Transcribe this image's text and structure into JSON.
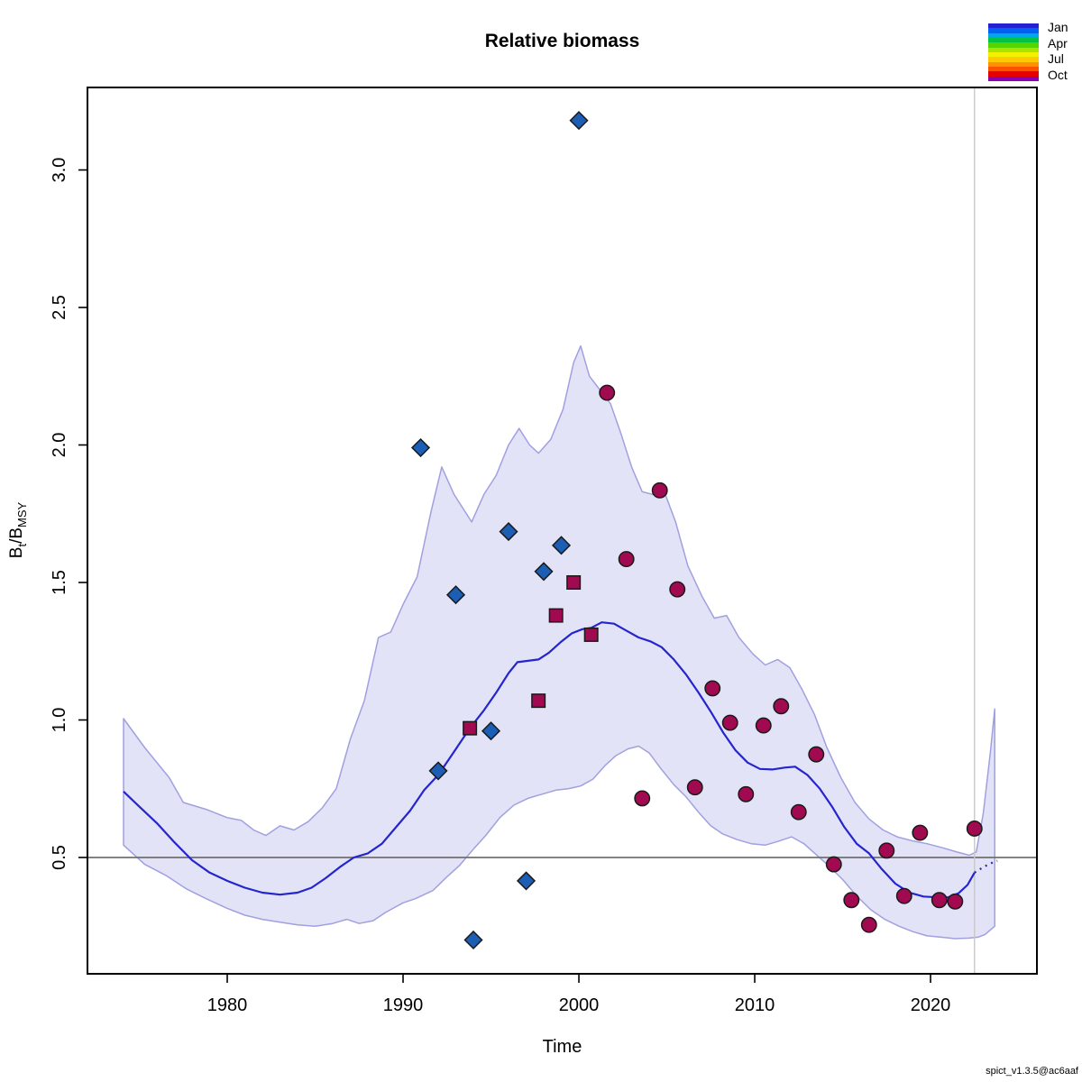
{
  "title": "Relative biomass",
  "xlabel": "Time",
  "ylabel_parts": {
    "base1": "B",
    "sub1": "t",
    "separator": "/",
    "base2": "B",
    "sub2": "MSY"
  },
  "footnote": "spict_v1.3.5@ac6aaf",
  "legend": {
    "labels": [
      "Jan",
      "Apr",
      "Jul",
      "Oct"
    ],
    "colorbar_colors": [
      "#2222D2",
      "#0060F0",
      "#00A8E8",
      "#00C244",
      "#55D400",
      "#AAE400",
      "#F2F200",
      "#FFC800",
      "#FF9100",
      "#FF5000",
      "#E60000",
      "#8A00B0"
    ]
  },
  "colors": {
    "band_fill": "#E3E3F7",
    "band_edge": "#A0A0E0",
    "median_line": "#2525CD",
    "diamond_fill": "#1B5EB3",
    "square_fill": "#A10A50",
    "circle_fill": "#A10A50",
    "point_stroke": "#1A1A1A",
    "ref_line": "#707070",
    "now_line": "#C8C8C8",
    "axis": "#000000"
  },
  "chart_data": {
    "type": "line",
    "title": "Relative biomass",
    "xlabel": "Time",
    "ylabel": "Bt/Bmsy",
    "x_ticks": [
      1980,
      1990,
      2000,
      2010,
      2020
    ],
    "y_ticks": [
      0.5,
      1.0,
      1.5,
      2.0,
      2.5,
      3.0
    ],
    "xlim": [
      1972.05,
      2026.05
    ],
    "ylim": [
      0.077,
      3.3
    ],
    "grid": false,
    "legend_position": "top-right",
    "reference_line_y": 0.5,
    "current_time_line_x": 2022.5,
    "band_upper": [
      [
        1974.1,
        1.005
      ],
      [
        1975.3,
        0.9
      ],
      [
        1976.7,
        0.79
      ],
      [
        1977.5,
        0.7
      ],
      [
        1978.8,
        0.675
      ],
      [
        1980,
        0.645
      ],
      [
        1980.8,
        0.635
      ],
      [
        1981.5,
        0.6
      ],
      [
        1982.2,
        0.58
      ],
      [
        1983,
        0.615
      ],
      [
        1983.8,
        0.6
      ],
      [
        1984.6,
        0.63
      ],
      [
        1985.4,
        0.68
      ],
      [
        1986.2,
        0.75
      ],
      [
        1987,
        0.93
      ],
      [
        1987.8,
        1.07
      ],
      [
        1988.6,
        1.3
      ],
      [
        1989.3,
        1.32
      ],
      [
        1990,
        1.42
      ],
      [
        1990.8,
        1.52
      ],
      [
        1991.6,
        1.76
      ],
      [
        1992.2,
        1.92
      ],
      [
        1992.9,
        1.82
      ],
      [
        1993.9,
        1.72
      ],
      [
        1994.6,
        1.82
      ],
      [
        1995.3,
        1.89
      ],
      [
        1996,
        2.0
      ],
      [
        1996.6,
        2.06
      ],
      [
        1997.2,
        2.0
      ],
      [
        1997.7,
        1.97
      ],
      [
        1998.4,
        2.02
      ],
      [
        1999.1,
        2.13
      ],
      [
        1999.7,
        2.3
      ],
      [
        2000.1,
        2.36
      ],
      [
        2000.6,
        2.25
      ],
      [
        2001.2,
        2.2
      ],
      [
        2001.8,
        2.15
      ],
      [
        2002.4,
        2.04
      ],
      [
        2003,
        1.92
      ],
      [
        2003.6,
        1.83
      ],
      [
        2004.2,
        1.82
      ],
      [
        2004.8,
        1.84
      ],
      [
        2005.5,
        1.72
      ],
      [
        2006.2,
        1.56
      ],
      [
        2007,
        1.45
      ],
      [
        2007.7,
        1.37
      ],
      [
        2008.4,
        1.38
      ],
      [
        2009.1,
        1.3
      ],
      [
        2009.9,
        1.24
      ],
      [
        2010.6,
        1.2
      ],
      [
        2011.3,
        1.22
      ],
      [
        2012,
        1.19
      ],
      [
        2012.7,
        1.11
      ],
      [
        2013.4,
        1.02
      ],
      [
        2014.1,
        0.9
      ],
      [
        2014.9,
        0.79
      ],
      [
        2015.7,
        0.7
      ],
      [
        2016.5,
        0.64
      ],
      [
        2017.3,
        0.6
      ],
      [
        2018.1,
        0.575
      ],
      [
        2019,
        0.56
      ],
      [
        2019.8,
        0.55
      ],
      [
        2020.7,
        0.535
      ],
      [
        2021.5,
        0.52
      ],
      [
        2022.2,
        0.508
      ],
      [
        2022.6,
        0.52
      ],
      [
        2023,
        0.66
      ],
      [
        2023.4,
        0.88
      ],
      [
        2023.65,
        1.04
      ]
    ],
    "band_lower": [
      [
        1974.1,
        0.545
      ],
      [
        1975.3,
        0.475
      ],
      [
        1976.5,
        0.435
      ],
      [
        1977.7,
        0.385
      ],
      [
        1978.8,
        0.35
      ],
      [
        1980,
        0.315
      ],
      [
        1981,
        0.29
      ],
      [
        1982,
        0.275
      ],
      [
        1983,
        0.265
      ],
      [
        1984,
        0.255
      ],
      [
        1985,
        0.25
      ],
      [
        1986,
        0.26
      ],
      [
        1986.8,
        0.275
      ],
      [
        1987.5,
        0.26
      ],
      [
        1988.3,
        0.27
      ],
      [
        1989,
        0.3
      ],
      [
        1990,
        0.335
      ],
      [
        1990.7,
        0.35
      ],
      [
        1991.7,
        0.38
      ],
      [
        1992.5,
        0.43
      ],
      [
        1993.2,
        0.47
      ],
      [
        1994,
        0.53
      ],
      [
        1994.7,
        0.58
      ],
      [
        1995.5,
        0.645
      ],
      [
        1996.3,
        0.69
      ],
      [
        1997.1,
        0.715
      ],
      [
        1997.9,
        0.73
      ],
      [
        1998.7,
        0.745
      ],
      [
        1999.4,
        0.75
      ],
      [
        2000.1,
        0.76
      ],
      [
        2000.8,
        0.785
      ],
      [
        2001.5,
        0.835
      ],
      [
        2002.1,
        0.87
      ],
      [
        2002.8,
        0.895
      ],
      [
        2003.4,
        0.905
      ],
      [
        2004,
        0.88
      ],
      [
        2004.7,
        0.82
      ],
      [
        2005.4,
        0.765
      ],
      [
        2006.1,
        0.72
      ],
      [
        2006.8,
        0.665
      ],
      [
        2007.5,
        0.615
      ],
      [
        2008.2,
        0.585
      ],
      [
        2009,
        0.565
      ],
      [
        2009.8,
        0.55
      ],
      [
        2010.6,
        0.545
      ],
      [
        2011.4,
        0.56
      ],
      [
        2012.1,
        0.575
      ],
      [
        2012.8,
        0.55
      ],
      [
        2013.5,
        0.51
      ],
      [
        2014.2,
        0.47
      ],
      [
        2015,
        0.42
      ],
      [
        2015.8,
        0.36
      ],
      [
        2016.6,
        0.31
      ],
      [
        2017.4,
        0.275
      ],
      [
        2018.2,
        0.25
      ],
      [
        2019,
        0.23
      ],
      [
        2019.8,
        0.215
      ],
      [
        2020.6,
        0.21
      ],
      [
        2021.4,
        0.205
      ],
      [
        2022.2,
        0.207
      ],
      [
        2022.7,
        0.21
      ],
      [
        2023.1,
        0.22
      ],
      [
        2023.65,
        0.25
      ]
    ],
    "median": [
      [
        1974.1,
        0.74
      ],
      [
        1975,
        0.685
      ],
      [
        1976,
        0.625
      ],
      [
        1977,
        0.555
      ],
      [
        1978,
        0.49
      ],
      [
        1979,
        0.445
      ],
      [
        1980,
        0.415
      ],
      [
        1981,
        0.39
      ],
      [
        1982,
        0.372
      ],
      [
        1983,
        0.365
      ],
      [
        1984,
        0.372
      ],
      [
        1984.8,
        0.39
      ],
      [
        1985.6,
        0.425
      ],
      [
        1986.4,
        0.465
      ],
      [
        1987.2,
        0.5
      ],
      [
        1988,
        0.515
      ],
      [
        1988.8,
        0.55
      ],
      [
        1989.6,
        0.61
      ],
      [
        1990.4,
        0.67
      ],
      [
        1991.2,
        0.745
      ],
      [
        1992,
        0.8
      ],
      [
        1992.8,
        0.875
      ],
      [
        1993.8,
        0.97
      ],
      [
        1994.6,
        1.035
      ],
      [
        1995.3,
        1.1
      ],
      [
        1996,
        1.17
      ],
      [
        1996.5,
        1.21
      ],
      [
        1997.1,
        1.215
      ],
      [
        1997.7,
        1.22
      ],
      [
        1998.3,
        1.245
      ],
      [
        1999,
        1.285
      ],
      [
        1999.6,
        1.315
      ],
      [
        2000.2,
        1.33
      ],
      [
        2000.7,
        1.335
      ],
      [
        2001.3,
        1.355
      ],
      [
        2002,
        1.35
      ],
      [
        2002.7,
        1.325
      ],
      [
        2003.4,
        1.3
      ],
      [
        2004.1,
        1.285
      ],
      [
        2004.7,
        1.265
      ],
      [
        2005.4,
        1.22
      ],
      [
        2006.1,
        1.165
      ],
      [
        2006.8,
        1.1
      ],
      [
        2007.5,
        1.03
      ],
      [
        2008.2,
        0.955
      ],
      [
        2008.9,
        0.89
      ],
      [
        2009.6,
        0.845
      ],
      [
        2010.3,
        0.822
      ],
      [
        2011,
        0.82
      ],
      [
        2011.7,
        0.827
      ],
      [
        2012.3,
        0.83
      ],
      [
        2013,
        0.8
      ],
      [
        2013.7,
        0.75
      ],
      [
        2014.4,
        0.685
      ],
      [
        2015.1,
        0.61
      ],
      [
        2015.8,
        0.55
      ],
      [
        2016.5,
        0.515
      ],
      [
        2017.2,
        0.46
      ],
      [
        2018,
        0.405
      ],
      [
        2018.8,
        0.372
      ],
      [
        2019.6,
        0.358
      ],
      [
        2020.4,
        0.355
      ],
      [
        2021,
        0.355
      ],
      [
        2021.6,
        0.37
      ],
      [
        2022.1,
        0.4
      ],
      [
        2022.5,
        0.445
      ]
    ],
    "median_forecast": [
      [
        2022.5,
        0.445
      ],
      [
        2023,
        0.465
      ],
      [
        2023.4,
        0.478
      ],
      [
        2023.8,
        0.488
      ]
    ],
    "series": [
      {
        "name": "index-diamonds",
        "marker": "diamond",
        "points": [
          [
            1991,
            1.99
          ],
          [
            1992,
            0.815
          ],
          [
            1993,
            1.455
          ],
          [
            1994,
            0.2
          ],
          [
            1995,
            0.96
          ],
          [
            1996,
            1.685
          ],
          [
            1997,
            0.415
          ],
          [
            1998,
            1.54
          ],
          [
            1999,
            1.635
          ],
          [
            2000,
            3.18
          ]
        ]
      },
      {
        "name": "index-squares",
        "marker": "square",
        "points": [
          [
            1993.8,
            0.97
          ],
          [
            1997.7,
            1.07
          ],
          [
            1998.7,
            1.38
          ],
          [
            1999.7,
            1.5
          ],
          [
            2000.7,
            1.31
          ]
        ]
      },
      {
        "name": "index-circles",
        "marker": "circle",
        "points": [
          [
            2001.6,
            2.19
          ],
          [
            2002.7,
            1.585
          ],
          [
            2003.6,
            0.715
          ],
          [
            2004.6,
            1.835
          ],
          [
            2005.6,
            1.475
          ],
          [
            2006.6,
            0.755
          ],
          [
            2007.6,
            1.115
          ],
          [
            2008.6,
            0.99
          ],
          [
            2009.5,
            0.73
          ],
          [
            2010.5,
            0.98
          ],
          [
            2011.5,
            1.05
          ],
          [
            2012.5,
            0.665
          ],
          [
            2013.5,
            0.875
          ],
          [
            2014.5,
            0.475
          ],
          [
            2015.5,
            0.345
          ],
          [
            2016.5,
            0.255
          ],
          [
            2017.5,
            0.525
          ],
          [
            2018.5,
            0.36
          ],
          [
            2019.4,
            0.59
          ],
          [
            2020.5,
            0.345
          ],
          [
            2021.4,
            0.34
          ],
          [
            2022.5,
            0.605
          ]
        ]
      }
    ]
  }
}
